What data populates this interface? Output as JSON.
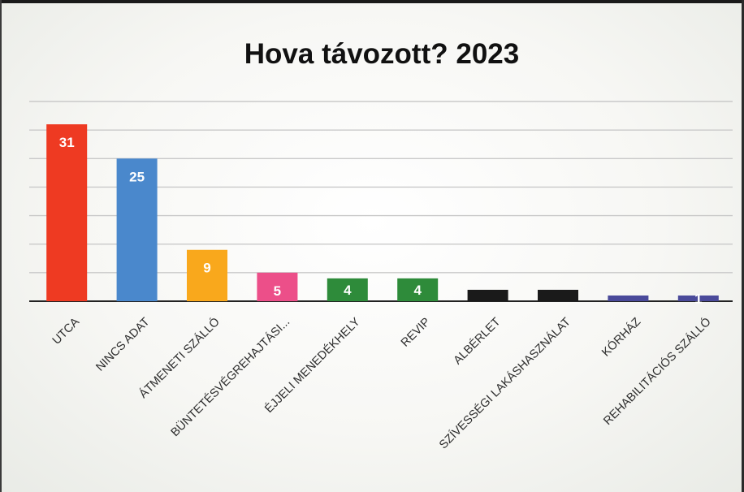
{
  "chart_data": {
    "type": "bar",
    "title": "Hova távozott? 2023",
    "categories": [
      "UTCA",
      "NINCS ADAT",
      "ÁTMENETI SZÁLLÓ",
      "BÜNTETÉSVÉGREHAJTÁSI...",
      "ÉJJELI MENEDÉKHELY",
      "REVIP",
      "ALBÉRLET",
      "SZÍVESSÉGI LAKÁSHASZNÁLAT",
      "KÓRHÁZ",
      "REHABILITÁCIÓS SZÁLLÓ"
    ],
    "values": [
      31,
      25,
      9,
      5,
      4,
      4,
      2,
      2,
      1,
      1
    ],
    "data_labels": [
      "31",
      "25",
      "9",
      "5",
      "4",
      "4",
      "",
      "",
      "",
      "1"
    ],
    "colors": [
      "#ee3a22",
      "#4a88cc",
      "#f9a81c",
      "#ec4f89",
      "#2e8b3a",
      "#2e8b3a",
      "#1a1a1a",
      "#1a1a1a",
      "#4a4a9a",
      "#4a4a9a"
    ],
    "ylim": [
      0,
      35
    ],
    "grid": true,
    "legend": "none",
    "xlabel": "",
    "ylabel": ""
  }
}
